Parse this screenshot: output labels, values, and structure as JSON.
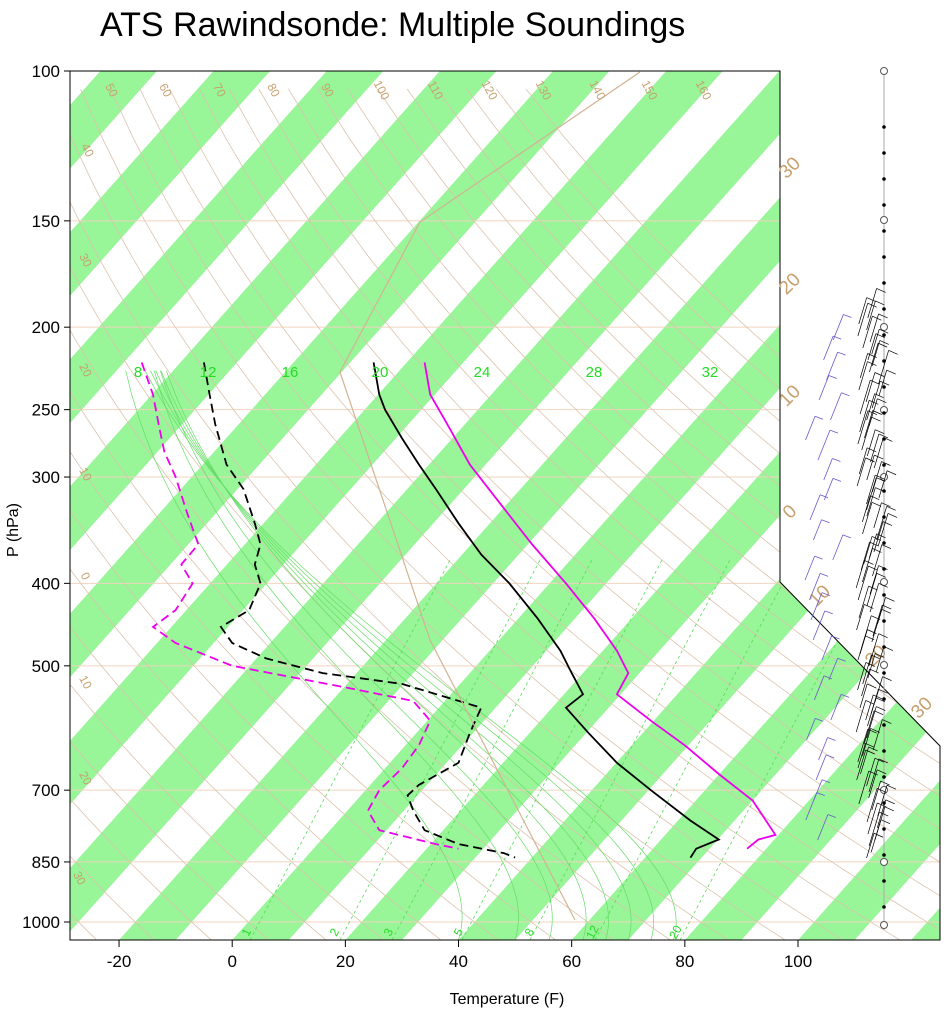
{
  "chart_data": {
    "type": "line",
    "title": "ATS Rawindsonde: Multiple Soundings",
    "xlabel": "Temperature (F)",
    "ylabel": "P (hPa)",
    "xlim": [
      -28,
      125
    ],
    "ylim": [
      1050,
      100
    ],
    "x_ticks": [
      "-20",
      "0",
      "20",
      "40",
      "60",
      "80",
      "100"
    ],
    "y_ticks": [
      "100",
      "150",
      "200",
      "250",
      "300",
      "400",
      "500",
      "700",
      "850",
      "1000"
    ],
    "skew_band_labels": [
      "30",
      "20",
      "10",
      "0",
      "10",
      "20",
      "30"
    ],
    "potential_temp_labels": [
      "40",
      "50",
      "60",
      "70",
      "80",
      "90",
      "100",
      "110",
      "120",
      "130",
      "140",
      "150",
      "160"
    ],
    "left_edge_labels": [
      "30",
      "20",
      "10",
      "0",
      "10",
      "20",
      "30"
    ],
    "theta_e_labels": [
      "8",
      "12",
      "16",
      "20",
      "24",
      "28",
      "32"
    ],
    "mixing_ratio_labels": [
      "1",
      "2",
      "3",
      "5",
      "8",
      "12",
      "20"
    ],
    "series": [
      {
        "color": "#000000",
        "dash": false,
        "points": [
          [
            25,
            220
          ],
          [
            26,
            240
          ],
          [
            27,
            250
          ],
          [
            30,
            270
          ],
          [
            33,
            290
          ],
          [
            36,
            310
          ],
          [
            40,
            340
          ],
          [
            44,
            370
          ],
          [
            49,
            400
          ],
          [
            54,
            440
          ],
          [
            58,
            480
          ],
          [
            60,
            510
          ],
          [
            62,
            540
          ],
          [
            59,
            560
          ],
          [
            63,
            600
          ],
          [
            68,
            650
          ],
          [
            74,
            700
          ],
          [
            81,
            760
          ],
          [
            86,
            800
          ],
          [
            82,
            820
          ],
          [
            81,
            840
          ]
        ]
      },
      {
        "color": "#000000",
        "dash": true,
        "points": [
          [
            -5,
            220
          ],
          [
            -4,
            240
          ],
          [
            -3,
            260
          ],
          [
            -1,
            290
          ],
          [
            2,
            310
          ],
          [
            4,
            340
          ],
          [
            5,
            360
          ],
          [
            4,
            380
          ],
          [
            5,
            400
          ],
          [
            3,
            430
          ],
          [
            -2,
            450
          ],
          [
            0,
            470
          ],
          [
            6,
            490
          ],
          [
            16,
            510
          ],
          [
            30,
            525
          ],
          [
            44,
            560
          ],
          [
            42,
            600
          ],
          [
            40,
            650
          ],
          [
            33,
            690
          ],
          [
            31,
            710
          ],
          [
            32,
            740
          ],
          [
            34,
            780
          ],
          [
            40,
            810
          ],
          [
            48,
            830
          ],
          [
            50,
            840
          ]
        ]
      },
      {
        "color": "#ee00ee",
        "dash": false,
        "points": [
          [
            34,
            220
          ],
          [
            35,
            240
          ],
          [
            38,
            260
          ],
          [
            42,
            290
          ],
          [
            47,
            320
          ],
          [
            53,
            360
          ],
          [
            59,
            400
          ],
          [
            64,
            440
          ],
          [
            68,
            480
          ],
          [
            70,
            510
          ],
          [
            68,
            540
          ],
          [
            74,
            580
          ],
          [
            80,
            620
          ],
          [
            86,
            670
          ],
          [
            92,
            720
          ],
          [
            96,
            790
          ],
          [
            93,
            800
          ],
          [
            91,
            820
          ]
        ]
      },
      {
        "color": "#ee00ee",
        "dash": true,
        "points": [
          [
            -16,
            220
          ],
          [
            -14,
            240
          ],
          [
            -13,
            260
          ],
          [
            -12,
            280
          ],
          [
            -10,
            300
          ],
          [
            -8,
            330
          ],
          [
            -6,
            360
          ],
          [
            -9,
            380
          ],
          [
            -7,
            400
          ],
          [
            -10,
            430
          ],
          [
            -14,
            450
          ],
          [
            -10,
            470
          ],
          [
            0,
            500
          ],
          [
            20,
            530
          ],
          [
            32,
            550
          ],
          [
            35,
            580
          ],
          [
            33,
            620
          ],
          [
            30,
            660
          ],
          [
            26,
            700
          ],
          [
            24,
            740
          ],
          [
            26,
            780
          ],
          [
            36,
            810
          ],
          [
            40,
            820
          ]
        ]
      }
    ],
    "wind_barbs": "columns of wind barbs on the right side (black and purple)"
  }
}
